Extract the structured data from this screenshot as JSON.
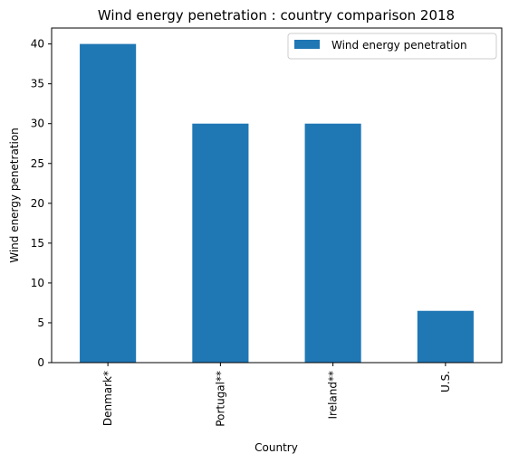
{
  "chart_data": {
    "type": "bar",
    "title": "Wind energy penetration : country comparison 2018",
    "xlabel": "Country",
    "ylabel": "Wind energy penetration",
    "categories": [
      "Denmark*",
      "Portugal**",
      "Ireland**",
      "U.S."
    ],
    "series": [
      {
        "name": "Wind energy penetration",
        "values": [
          40,
          30,
          30,
          6.5
        ],
        "color": "#1f77b4"
      }
    ],
    "ylim": [
      0,
      42
    ],
    "yticks": [
      0,
      5,
      10,
      15,
      20,
      25,
      30,
      35,
      40
    ],
    "grid": false,
    "legend_position": "top-right"
  }
}
